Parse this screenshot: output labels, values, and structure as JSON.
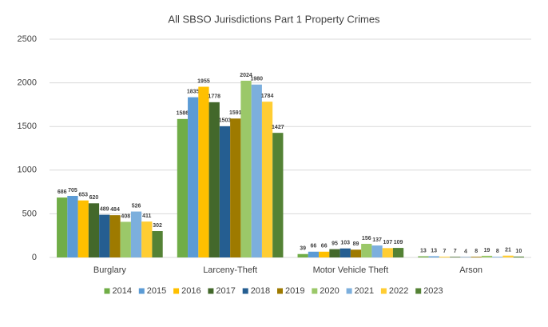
{
  "chart_data": {
    "type": "bar",
    "title": "All SBSO Jurisdictions Part 1 Property Crimes",
    "categories": [
      "Burglary",
      "Larceny-Theft",
      "Motor Vehicle Theft",
      "Arson"
    ],
    "series": [
      {
        "name": "2014",
        "color": "#70ad47",
        "values": [
          686,
          1586,
          39,
          13
        ]
      },
      {
        "name": "2015",
        "color": "#5b9bd5",
        "values": [
          705,
          1835,
          66,
          13
        ]
      },
      {
        "name": "2016",
        "color": "#ffc000",
        "values": [
          653,
          1955,
          66,
          7
        ]
      },
      {
        "name": "2017",
        "color": "#43682b",
        "values": [
          620,
          1778,
          95,
          7
        ]
      },
      {
        "name": "2018",
        "color": "#255e91",
        "values": [
          489,
          1503,
          103,
          4
        ]
      },
      {
        "name": "2019",
        "color": "#9e7a00",
        "values": [
          484,
          1591,
          89,
          8
        ]
      },
      {
        "name": "2020",
        "color": "#9bc869",
        "values": [
          408,
          2024,
          156,
          19
        ]
      },
      {
        "name": "2021",
        "color": "#7cafdd",
        "values": [
          526,
          1980,
          137,
          8
        ]
      },
      {
        "name": "2022",
        "color": "#ffcd33",
        "values": [
          411,
          1784,
          107,
          21
        ]
      },
      {
        "name": "2023",
        "color": "#548235",
        "values": [
          302,
          1427,
          109,
          10
        ]
      }
    ],
    "ylim": [
      0,
      2500
    ],
    "yticks": [
      0,
      500,
      1000,
      1500,
      2000,
      2500
    ],
    "grid": true,
    "legend": "bottom"
  }
}
